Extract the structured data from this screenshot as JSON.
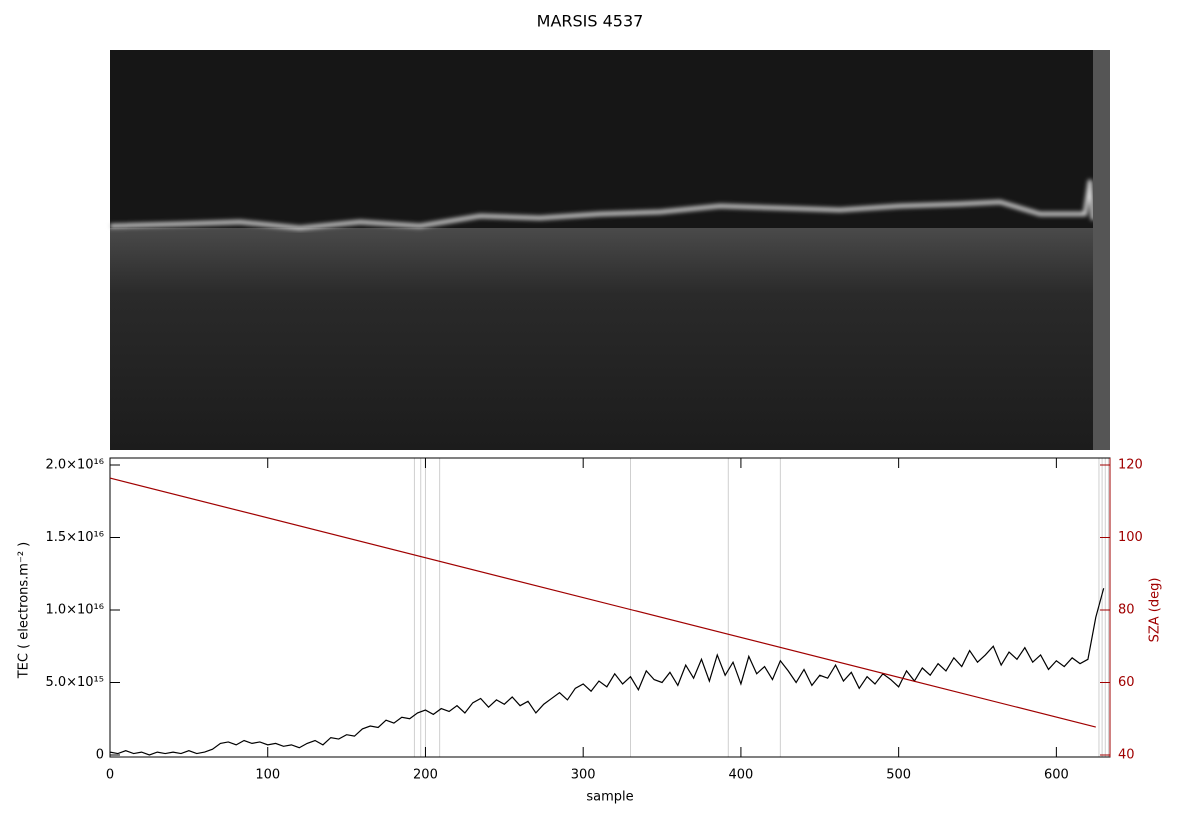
{
  "chart_data": {
    "type": "line",
    "title": "MARSIS 4537",
    "xlabel": "sample",
    "ylabel": "TEC ( electrons.m⁻² )",
    "y2label": "SZA (deg)",
    "xlim": [
      0,
      634
    ],
    "xticks": [
      0,
      100,
      200,
      300,
      400,
      500,
      600
    ],
    "ylim": [
      0,
      2e+16
    ],
    "yticks": [
      0,
      {
        "value": 5000000000000000.0,
        "label": "5.0×10¹⁵"
      },
      {
        "value": 1e+16,
        "label": "1.0×10¹⁶"
      },
      {
        "value": 1.5e+16,
        "label": "1.5×10¹⁶"
      },
      {
        "value": 2e+16,
        "label": "2.0×10¹⁶"
      }
    ],
    "y2lim": [
      40,
      120
    ],
    "y2ticks": [
      40,
      60,
      80,
      100,
      120
    ],
    "markers": [
      193,
      197,
      200,
      209,
      330,
      392,
      425,
      627,
      629,
      631,
      633
    ],
    "series": [
      {
        "color": "#000000",
        "x": [
          0,
          5,
          10,
          15,
          20,
          25,
          30,
          35,
          40,
          45,
          50,
          55,
          60,
          65,
          70,
          75,
          80,
          85,
          90,
          95,
          100,
          105,
          110,
          115,
          120,
          125,
          130,
          135,
          140,
          145,
          150,
          155,
          160,
          165,
          170,
          175,
          180,
          185,
          190,
          195,
          200,
          205,
          210,
          215,
          220,
          225,
          230,
          235,
          240,
          245,
          250,
          255,
          260,
          265,
          270,
          275,
          280,
          285,
          290,
          295,
          300,
          305,
          310,
          315,
          320,
          325,
          330,
          335,
          340,
          345,
          350,
          355,
          360,
          365,
          370,
          375,
          380,
          385,
          390,
          395,
          400,
          405,
          410,
          415,
          420,
          425,
          430,
          435,
          440,
          445,
          450,
          455,
          460,
          465,
          470,
          475,
          480,
          485,
          490,
          495,
          500,
          505,
          510,
          515,
          520,
          525,
          530,
          535,
          540,
          545,
          550,
          555,
          560,
          565,
          570,
          575,
          580,
          585,
          590,
          595,
          600,
          605,
          610,
          615,
          620,
          625,
          630
        ],
        "values": [
          200000000000000.0,
          100000000000000.0,
          300000000000000.0,
          100000000000000.0,
          200000000000000.0,
          0,
          200000000000000.0,
          100000000000000.0,
          200000000000000.0,
          100000000000000.0,
          300000000000000.0,
          100000000000000.0,
          200000000000000.0,
          400000000000000.0,
          800000000000000.0,
          900000000000000.0,
          700000000000000.0,
          1000000000000000.0,
          800000000000000.0,
          900000000000000.0,
          700000000000000.0,
          800000000000000.0,
          600000000000000.0,
          700000000000000.0,
          500000000000000.0,
          800000000000000.0,
          1000000000000000.0,
          700000000000000.0,
          1200000000000000.0,
          1100000000000000.0,
          1400000000000000.0,
          1300000000000000.0,
          1800000000000000.0,
          2000000000000000.0,
          1900000000000000.0,
          2400000000000000.0,
          2200000000000000.0,
          2600000000000000.0,
          2500000000000000.0,
          2900000000000000.0,
          3100000000000000.0,
          2800000000000000.0,
          3200000000000000.0,
          3000000000000000.0,
          3400000000000000.0,
          2900000000000000.0,
          3600000000000000.0,
          3900000000000000.0,
          3300000000000000.0,
          3800000000000000.0,
          3500000000000000.0,
          4000000000000000.0,
          3400000000000000.0,
          3700000000000000.0,
          2900000000000000.0,
          3500000000000000.0,
          3900000000000000.0,
          4300000000000000.0,
          3800000000000000.0,
          4600000000000000.0,
          4900000000000000.0,
          4400000000000000.0,
          5100000000000000.0,
          4700000000000000.0,
          5600000000000000.0,
          4900000000000000.0,
          5400000000000000.0,
          4500000000000000.0,
          5800000000000000.0,
          5200000000000000.0,
          5000000000000000.0,
          5700000000000000.0,
          4800000000000000.0,
          6200000000000000.0,
          5300000000000000.0,
          6600000000000000.0,
          5100000000000000.0,
          6900000000000000.0,
          5500000000000000.0,
          6400000000000000.0,
          4900000000000000.0,
          6800000000000000.0,
          5600000000000000.0,
          6100000000000000.0,
          5200000000000000.0,
          6500000000000000.0,
          5800000000000000.0,
          5000000000000000.0,
          5900000000000000.0,
          4800000000000000.0,
          5500000000000000.0,
          5300000000000000.0,
          6200000000000000.0,
          5100000000000000.0,
          5700000000000000.0,
          4600000000000000.0,
          5400000000000000.0,
          4900000000000000.0,
          5600000000000000.0,
          5200000000000000.0,
          4700000000000000.0,
          5800000000000000.0,
          5100000000000000.0,
          6000000000000000.0,
          5500000000000000.0,
          6300000000000000.0,
          5800000000000000.0,
          6700000000000000.0,
          6100000000000000.0,
          7200000000000000.0,
          6400000000000000.0,
          6900000000000000.0,
          7500000000000000.0,
          6200000000000000.0,
          7100000000000000.0,
          6600000000000000.0,
          7400000000000000.0,
          6400000000000000.0,
          6900000000000000.0,
          5900000000000000.0,
          6500000000000000.0,
          6100000000000000.0,
          6700000000000000.0,
          6300000000000000.0,
          6600000000000000.0,
          9500000000000000.0,
          1.15e+16
        ]
      },
      {
        "color": "#a00000",
        "axis": "y2",
        "x": [
          0,
          625
        ],
        "values": [
          116.4,
          47.7
        ]
      }
    ]
  }
}
